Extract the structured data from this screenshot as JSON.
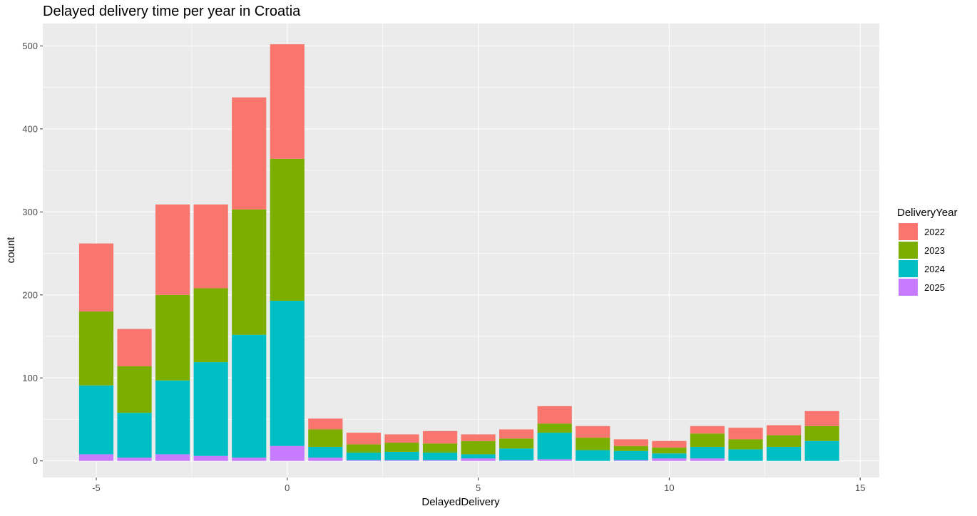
{
  "chart_data": {
    "type": "bar",
    "stacked": true,
    "title": "Delayed delivery time per year in Croatia",
    "xlabel": "DelayedDelivery",
    "ylabel": "count",
    "xlim": [
      -6.4,
      15.5
    ],
    "ylim": [
      -20,
      527
    ],
    "x_ticks": [
      -5,
      0,
      5,
      10,
      15
    ],
    "y_ticks": [
      0,
      100,
      200,
      300,
      400,
      500
    ],
    "x_tick_labels": [
      "-5",
      "0",
      "5",
      "10",
      "15"
    ],
    "y_tick_labels": [
      "0",
      "100",
      "200",
      "300",
      "400",
      "500"
    ],
    "grid": true,
    "legend_title": "DeliveryYear",
    "legend_position": "right",
    "x": [
      -5,
      -4,
      -3,
      -2,
      -1,
      0,
      1,
      2,
      3,
      4,
      5,
      6,
      7,
      8,
      9,
      10,
      11,
      12,
      13,
      14
    ],
    "series": [
      {
        "name": "2022",
        "color": "#F8766D",
        "values": [
          82,
          45,
          109,
          101,
          135,
          138,
          13,
          14,
          10,
          15,
          8,
          11,
          21,
          14,
          8,
          8,
          9,
          14,
          12,
          18
        ]
      },
      {
        "name": "2023",
        "color": "#7CAE00",
        "values": [
          89,
          56,
          103,
          89,
          151,
          171,
          21,
          10,
          11,
          11,
          16,
          12,
          11,
          15,
          6,
          7,
          16,
          12,
          14,
          18
        ]
      },
      {
        "name": "2024",
        "color": "#00BFC4",
        "values": [
          83,
          54,
          89,
          113,
          148,
          175,
          13,
          9,
          10,
          9,
          5,
          14,
          32,
          13,
          11,
          6,
          14,
          14,
          17,
          24
        ]
      },
      {
        "name": "2025",
        "color": "#C77CFF",
        "values": [
          8,
          4,
          8,
          6,
          4,
          18,
          4,
          1,
          1,
          1,
          3,
          1,
          2,
          0,
          1,
          3,
          3,
          0,
          0,
          0
        ]
      }
    ]
  }
}
